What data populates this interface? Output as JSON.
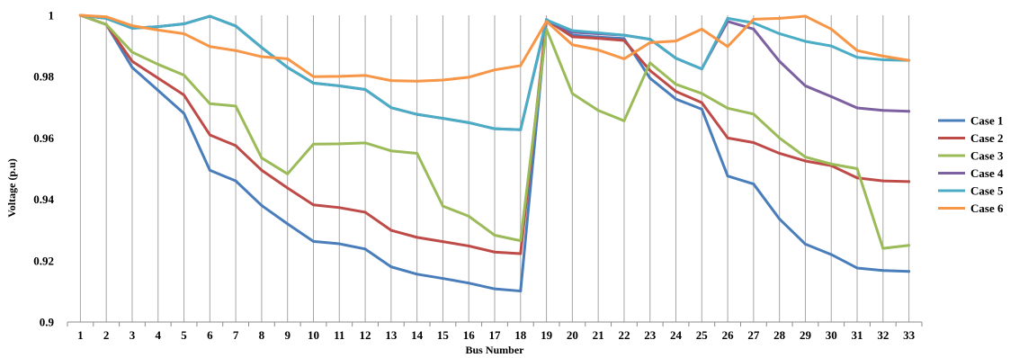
{
  "chart_data": {
    "type": "line",
    "xlabel": "Bus Number",
    "ylabel": "Voltage (p.u)",
    "ylim": [
      0.9,
      1.0
    ],
    "yticks": [
      0.9,
      0.92,
      0.94,
      0.96,
      0.98,
      1.0
    ],
    "ytick_labels": [
      "0.9",
      "0.92",
      "0.94",
      "0.96",
      "0.98",
      "1"
    ],
    "x": [
      1,
      2,
      3,
      4,
      5,
      6,
      7,
      8,
      9,
      10,
      11,
      12,
      13,
      14,
      15,
      16,
      17,
      18,
      19,
      20,
      21,
      22,
      23,
      24,
      25,
      26,
      27,
      28,
      29,
      30,
      31,
      32,
      33
    ],
    "x_tick_labels": [
      "1",
      "2",
      "3",
      "4",
      "5",
      "6",
      "7",
      "8",
      "9",
      "10",
      "11",
      "12",
      "13",
      "14",
      "15",
      "16",
      "17",
      "18",
      "19",
      "20",
      "21",
      "22",
      "23",
      "24",
      "25",
      "26",
      "27",
      "28",
      "29",
      "30",
      "31",
      "32",
      "33"
    ],
    "grid": "vertical",
    "legend_position": "right",
    "series": [
      {
        "name": "Case 1",
        "color": "#4a7ebb",
        "values": [
          1.0,
          0.997,
          0.983,
          0.9755,
          0.968,
          0.9495,
          0.946,
          0.938,
          0.932,
          0.9263,
          0.9255,
          0.9238,
          0.918,
          0.9156,
          0.9142,
          0.9127,
          0.9108,
          0.9101,
          0.9986,
          0.9935,
          0.9929,
          0.9924,
          0.9795,
          0.9727,
          0.9694,
          0.9476,
          0.945,
          0.9336,
          0.9254,
          0.922,
          0.9176,
          0.9168,
          0.9165
        ]
      },
      {
        "name": "Case 2",
        "color": "#be4b48",
        "values": [
          1.0,
          0.997,
          0.985,
          0.9795,
          0.974,
          0.961,
          0.9575,
          0.9495,
          0.9437,
          0.9382,
          0.9373,
          0.9358,
          0.9299,
          0.9276,
          0.9262,
          0.9248,
          0.9228,
          0.9223,
          0.9985,
          0.993,
          0.9925,
          0.9918,
          0.982,
          0.9752,
          0.9715,
          0.96,
          0.9585,
          0.955,
          0.9525,
          0.951,
          0.947,
          0.946,
          0.9458
        ]
      },
      {
        "name": "Case 3",
        "color": "#9bbb59",
        "values": [
          1.0,
          0.997,
          0.988,
          0.984,
          0.9805,
          0.9712,
          0.9704,
          0.9535,
          0.9483,
          0.958,
          0.9581,
          0.9584,
          0.9558,
          0.955,
          0.9378,
          0.9345,
          0.9283,
          0.9265,
          0.9955,
          0.9745,
          0.969,
          0.9656,
          0.9845,
          0.9775,
          0.9745,
          0.9697,
          0.9678,
          0.96,
          0.9538,
          0.9515,
          0.95,
          0.924,
          0.925
        ]
      },
      {
        "name": "Case 4",
        "color": "#7d60a0",
        "values": [
          1.0,
          0.999,
          0.9958,
          0.9963,
          0.9972,
          0.9997,
          0.9965,
          0.9895,
          0.983,
          0.9779,
          0.977,
          0.9758,
          0.9699,
          0.9677,
          0.9664,
          0.965,
          0.963,
          0.9627,
          0.9982,
          0.9945,
          0.994,
          0.9935,
          0.9922,
          0.986,
          0.9825,
          0.998,
          0.9955,
          0.985,
          0.977,
          0.9735,
          0.9698,
          0.969,
          0.9687
        ]
      },
      {
        "name": "Case 5",
        "color": "#4bacc6",
        "values": [
          1.0,
          0.999,
          0.9958,
          0.9963,
          0.9972,
          0.9997,
          0.9965,
          0.9895,
          0.983,
          0.9779,
          0.977,
          0.9758,
          0.9699,
          0.9677,
          0.9664,
          0.965,
          0.963,
          0.9627,
          0.9985,
          0.995,
          0.9943,
          0.9935,
          0.9922,
          0.986,
          0.9825,
          0.999,
          0.9975,
          0.994,
          0.9915,
          0.99,
          0.9863,
          0.9855,
          0.9853
        ]
      },
      {
        "name": "Case 6",
        "color": "#f79646",
        "values": [
          1.0,
          0.9995,
          0.9966,
          0.9952,
          0.994,
          0.9898,
          0.9885,
          0.9865,
          0.9858,
          0.98,
          0.9801,
          0.9804,
          0.9787,
          0.9785,
          0.9789,
          0.9798,
          0.9822,
          0.9836,
          0.998,
          0.9904,
          0.9887,
          0.9858,
          0.9911,
          0.9916,
          0.9955,
          0.9898,
          0.9987,
          0.999,
          0.9997,
          0.9955,
          0.9885,
          0.9867,
          0.9853
        ]
      }
    ]
  }
}
